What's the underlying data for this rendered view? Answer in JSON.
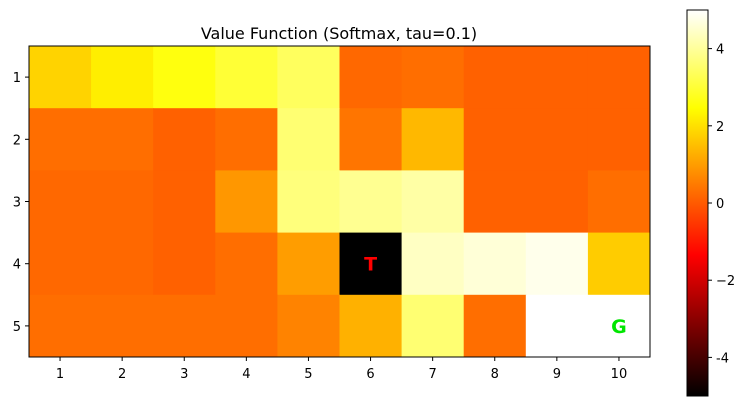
{
  "chart_data": {
    "type": "heatmap",
    "title": "Value Function (Softmax, tau=0.1)",
    "xlabel": "",
    "ylabel": "",
    "x_ticks": [
      "1",
      "2",
      "3",
      "4",
      "5",
      "6",
      "7",
      "8",
      "9",
      "10"
    ],
    "y_ticks": [
      "1",
      "2",
      "3",
      "4",
      "5"
    ],
    "colormap": "hot",
    "vmin": -5,
    "vmax": 5,
    "colorbar_ticks": [
      "-4",
      "−2",
      "0",
      "2",
      "4"
    ],
    "colorbar_tick_values": [
      -4,
      -2,
      0,
      2,
      4
    ],
    "values": [
      [
        1.8,
        2.2,
        2.6,
        3.0,
        3.4,
        0.2,
        0.3,
        0.1,
        0.1,
        0.1
      ],
      [
        0.3,
        0.3,
        0.1,
        0.3,
        3.6,
        0.4,
        1.4,
        0.1,
        0.1,
        0.1
      ],
      [
        0.2,
        0.2,
        0.1,
        0.9,
        3.7,
        3.9,
        4.1,
        0.1,
        0.1,
        0.3
      ],
      [
        0.2,
        0.2,
        0.1,
        0.3,
        1.0,
        -5.0,
        4.4,
        4.6,
        4.8,
        1.7
      ],
      [
        0.3,
        0.3,
        0.3,
        0.3,
        0.6,
        1.3,
        3.6,
        0.3,
        5.0,
        5.0
      ]
    ],
    "annotations": [
      {
        "row": 4,
        "col": 6,
        "text": "T",
        "color": "#ff0000"
      },
      {
        "row": 5,
        "col": 10,
        "text": "G",
        "color": "#00e600"
      }
    ]
  }
}
